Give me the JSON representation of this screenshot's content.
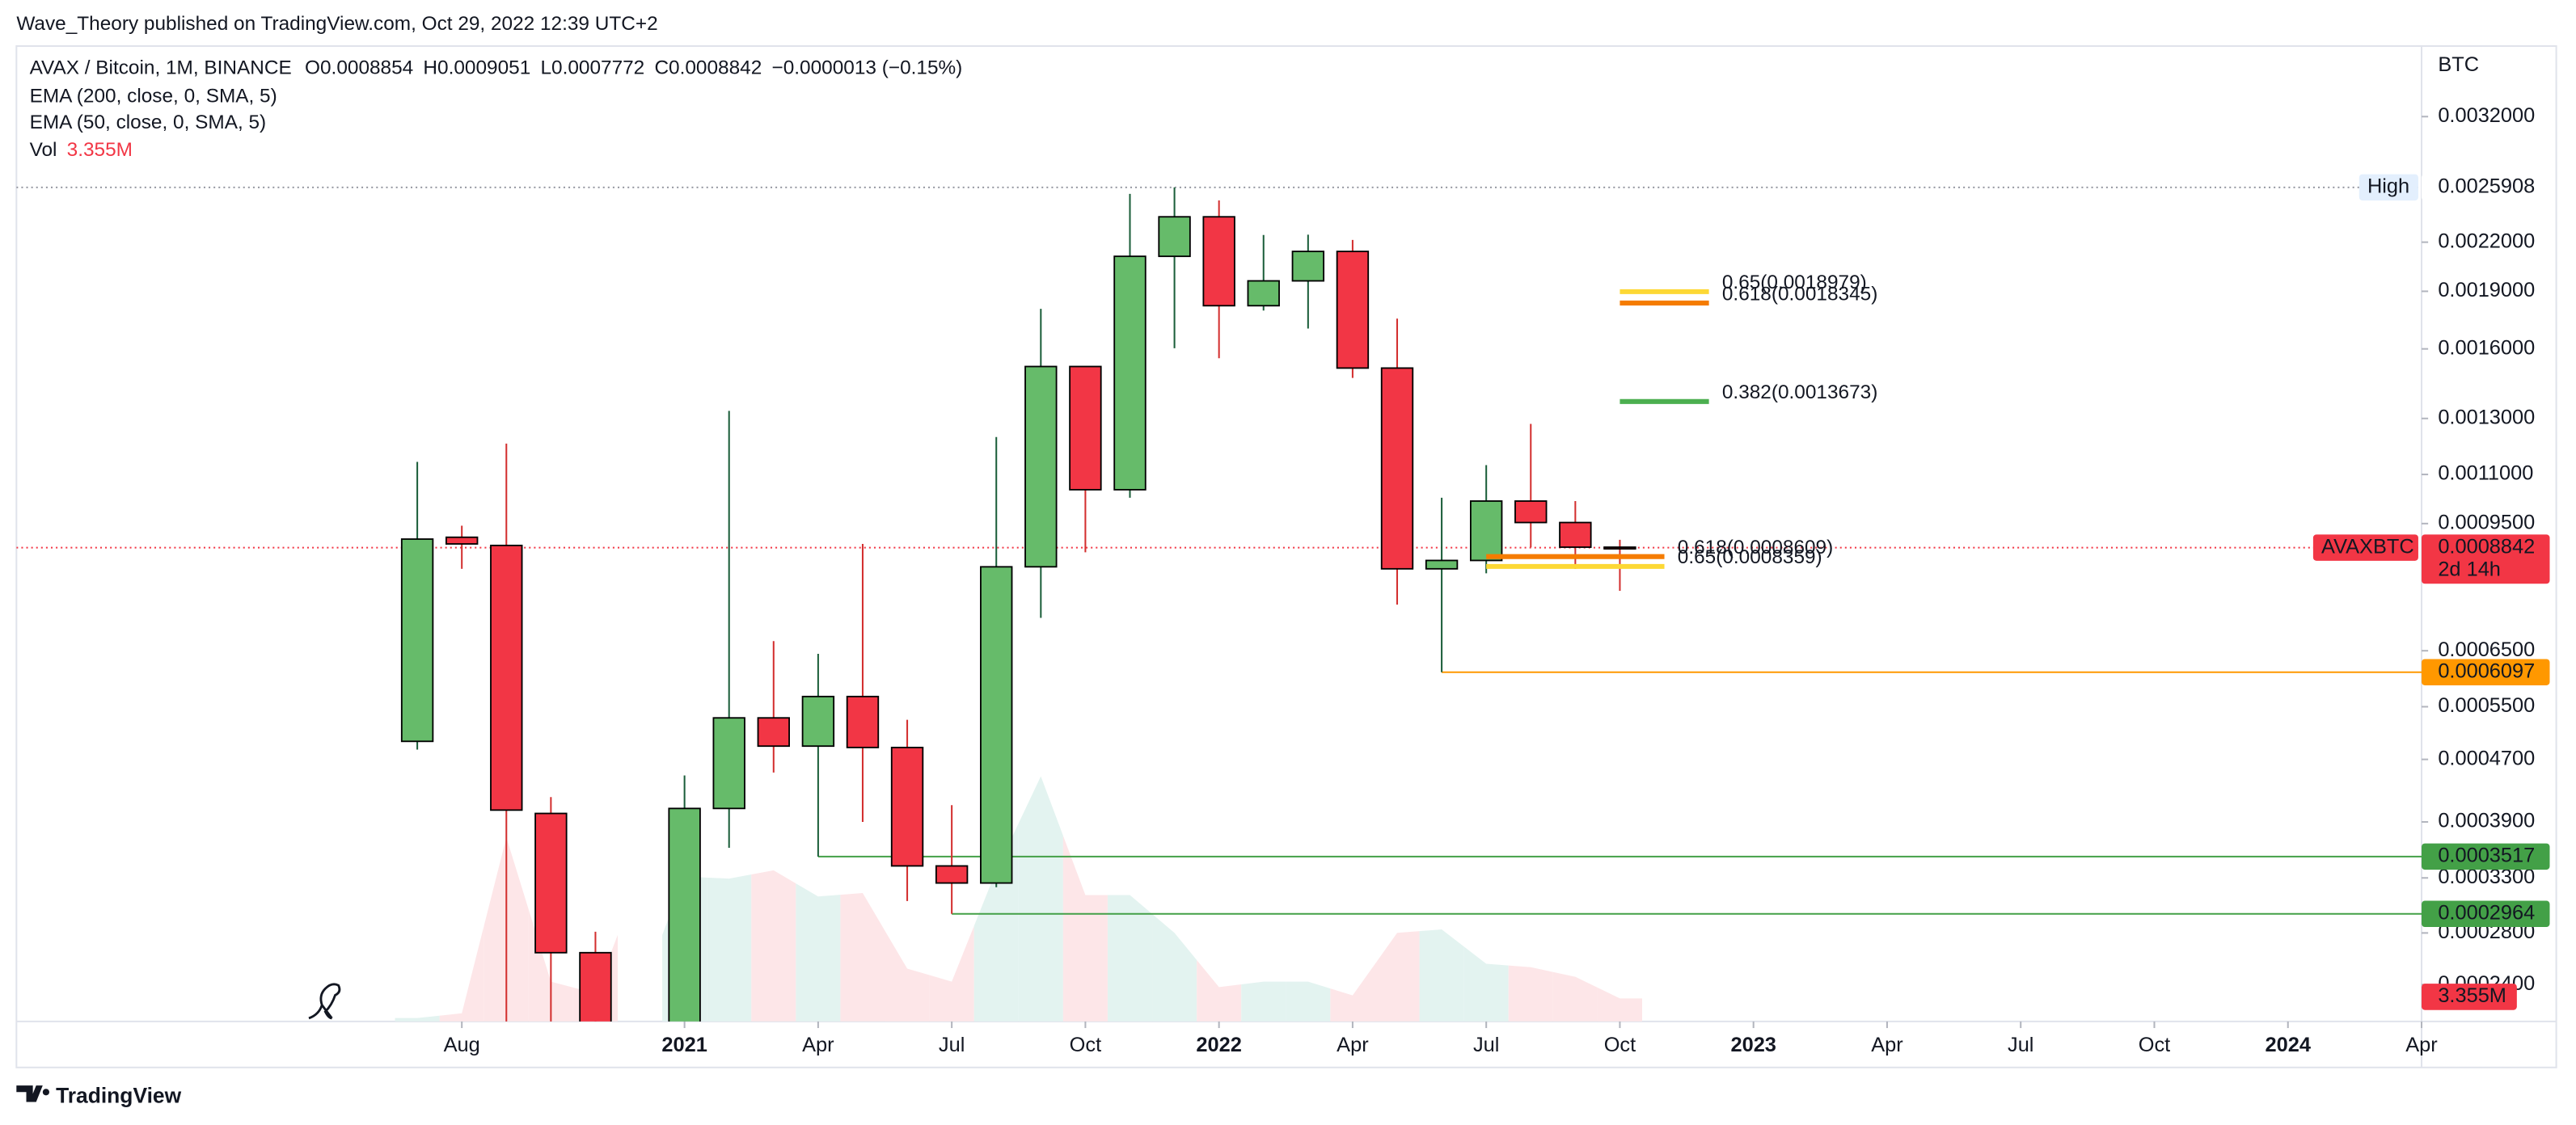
{
  "header": {
    "publisher": "Wave_Theory published on TradingView.com, Oct 29, 2022 12:39 UTC+2"
  },
  "footer": {
    "brand": "TradingView"
  },
  "chart_data": {
    "type": "candlestick",
    "legend": {
      "symbol": "AVAX / Bitcoin, 1M, BINANCE",
      "o": "O",
      "h": "H",
      "l": "L",
      "c": "C",
      "change": "−0.0000013 (−0.15%)"
    },
    "indicators": [
      "EMA (200, close, 0, SMA, 5)",
      "EMA (50, close, 0, SMA, 5)"
    ],
    "currency": "BTC",
    "x": [
      "2020-07",
      "2020-08",
      "2020-09",
      "2020-10",
      "2020-11",
      "2021-01",
      "2021-02",
      "2021-03",
      "2021-04",
      "2021-05",
      "2021-06",
      "2021-07",
      "2021-08",
      "2021-09",
      "2021-10",
      "2021-11",
      "2021-12",
      "2022-01",
      "2022-02",
      "2022-03",
      "2022-04",
      "2022-05",
      "2022-06",
      "2022-07",
      "2022-08",
      "2022-09",
      "2022-10"
    ],
    "series": [
      {
        "name": "AVAXBTC",
        "open": [
          0.000496,
          0.000912,
          0.00089,
          0.0004,
          0.000264,
          0.0002,
          0.000406,
          0.000532,
          0.000489,
          0.000567,
          0.000487,
          0.000342,
          0.000325,
          0.000835,
          0.001518,
          0.001051,
          0.002109,
          0.002373,
          0.00182,
          0.00196,
          0.00214,
          0.001511,
          0.00083,
          0.000851,
          0.001016,
          0.000953,
          0.0008854
        ],
        "high": [
          0.001142,
          0.000944,
          0.001206,
          0.00042,
          0.000281,
          0.000448,
          0.00133,
          0.000669,
          0.000644,
          0.000894,
          0.000529,
          0.00041,
          0.00123,
          0.001803,
          0.00152,
          0.002541,
          0.0025908,
          0.002492,
          0.002248,
          0.00225,
          0.002215,
          0.001751,
          0.001026,
          0.001131,
          0.001279,
          0.001016,
          0.0009051
        ],
        "low": [
          0.000484,
          0.00083,
          0.0002,
          0.0002,
          0.00016,
          0.00018,
          0.000361,
          0.000452,
          0.0003517,
          0.00039,
          0.000308,
          0.0002964,
          0.000321,
          0.000717,
          0.000872,
          0.001026,
          0.001603,
          0.001556,
          0.001794,
          0.0017,
          0.001467,
          0.000746,
          0.0006097,
          0.000819,
          0.000885,
          0.00083,
          0.0007772
        ],
        "close": [
          0.000907,
          0.000894,
          0.000404,
          0.000264,
          0.00018,
          0.000406,
          0.000532,
          0.000489,
          0.000567,
          0.000487,
          0.000342,
          0.000325,
          0.000835,
          0.001518,
          0.001051,
          0.002109,
          0.002373,
          0.00182,
          0.00196,
          0.00214,
          0.001511,
          0.00083,
          0.000851,
          0.001016,
          0.000953,
          0.0008854,
          0.0008842
        ],
        "countdown": "2d 14h"
      }
    ],
    "up_color": "#66bb6a",
    "down_color": "#f23645",
    "up_wick": "#1b5e3a",
    "down_wick": "#d32f2f",
    "volume": {
      "name": "Vol",
      "values": [
        0.5,
        1.2,
        26.8,
        5.8,
        4.1,
        21.1,
        20.8,
        22.0,
        18.2,
        18.7,
        7.7,
        5.8,
        22.0,
        35.7,
        18.4,
        18.4,
        12.9,
        5.0,
        5.8,
        5.8,
        3.8,
        12.9,
        13.4,
        8.4,
        7.9,
        6.5,
        3.355
      ],
      "value_labels": [
        null,
        null,
        null,
        null,
        null,
        null,
        null,
        null,
        null,
        null,
        null,
        null,
        null,
        null,
        null,
        null,
        null,
        null,
        null,
        null,
        null,
        null,
        null,
        null,
        null,
        null,
        "3.355M"
      ],
      "ylim": [
        0,
        142
      ],
      "up_color": "#e3f3f0",
      "down_color": "#fde6e8",
      "label_color": "#f23645"
    },
    "log_scale": true,
    "grid": false,
    "xlim": [
      "2019-10",
      "2024-04"
    ],
    "ylim": [
      0.000215,
      0.00395
    ],
    "xticks": [
      {
        "value": "2020-08",
        "label": "Aug"
      },
      {
        "value": "2021-01",
        "label": "2021",
        "major": true
      },
      {
        "value": "2021-04",
        "label": "Apr"
      },
      {
        "value": "2021-07",
        "label": "Jul"
      },
      {
        "value": "2021-10",
        "label": "Oct"
      },
      {
        "value": "2022-01",
        "label": "2022",
        "major": true
      },
      {
        "value": "2022-04",
        "label": "Apr"
      },
      {
        "value": "2022-07",
        "label": "Jul"
      },
      {
        "value": "2022-10",
        "label": "Oct"
      },
      {
        "value": "2023-01",
        "label": "2023",
        "major": true
      },
      {
        "value": "2023-04",
        "label": "Apr"
      },
      {
        "value": "2023-07",
        "label": "Jul"
      },
      {
        "value": "2023-10",
        "label": "Oct"
      },
      {
        "value": "2024-01",
        "label": "2024",
        "major": true
      },
      {
        "value": "2024-04",
        "label": "Apr"
      }
    ],
    "yticks": [
      {
        "value": 0.0032,
        "label": "0.0032000"
      },
      {
        "value": 0.0022,
        "label": "0.0022000"
      },
      {
        "value": 0.0019,
        "label": "0.0019000"
      },
      {
        "value": 0.0016,
        "label": "0.0016000"
      },
      {
        "value": 0.0013,
        "label": "0.0013000"
      },
      {
        "value": 0.0011,
        "label": "0.0011000"
      },
      {
        "value": 0.00095,
        "label": "0.0009500"
      },
      {
        "value": 0.00065,
        "label": "0.0006500"
      },
      {
        "value": 0.00055,
        "label": "0.0005500"
      },
      {
        "value": 0.00047,
        "label": "0.0004700"
      },
      {
        "value": 0.00039,
        "label": "0.0003900"
      },
      {
        "value": 0.00033,
        "label": "0.0003300"
      },
      {
        "value": 0.00028,
        "label": "0.0002800"
      },
      {
        "value": 0.00024,
        "label": "0.0002400"
      }
    ],
    "high_level": {
      "label": "High",
      "value": 0.0025908,
      "color": "#9598a1",
      "tag_color": "#e3effd"
    },
    "levels": [
      {
        "value": 0.0006097,
        "from": "2022-06",
        "color": "#ff9800"
      },
      {
        "value": 0.0003517,
        "from": "2021-04",
        "color": "#43a047"
      },
      {
        "value": 0.0002964,
        "from": "2021-07",
        "color": "#43a047"
      }
    ],
    "fibs": [
      {
        "label": "0.65(0.0018979)",
        "value": 0.0018979,
        "from": "2022-10",
        "to": "2022-12",
        "color": "#fdd835"
      },
      {
        "label": "0.618(0.0018345)",
        "value": 0.0018345,
        "from": "2022-10",
        "to": "2022-12",
        "color": "#f57c00"
      },
      {
        "label": "0.382(0.0013673)",
        "value": 0.0013673,
        "from": "2022-10",
        "to": "2022-12",
        "color": "#4caf50"
      },
      {
        "label": "0.618(0.0008609)",
        "value": 0.0008609,
        "from": "2022-07",
        "to": "2022-11",
        "color": "#f57c00"
      },
      {
        "label": "0.65(0.0008359)",
        "value": 0.0008359,
        "from": "2022-07",
        "to": "2022-11",
        "color": "#fdd835"
      }
    ]
  }
}
